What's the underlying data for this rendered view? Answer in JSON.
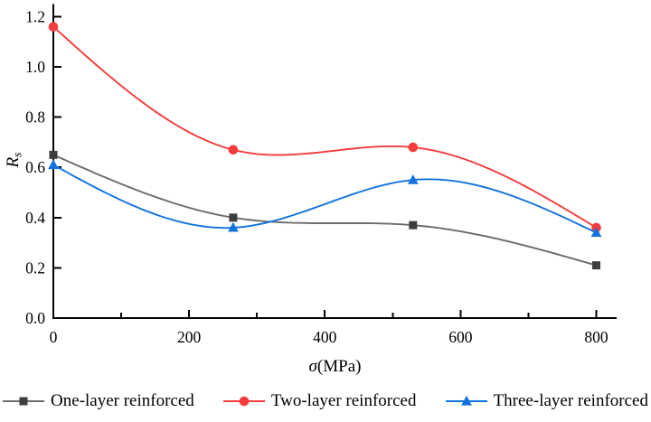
{
  "chart_data": {
    "type": "line",
    "title": "",
    "xlabel_symbol": "σ",
    "xlabel_unit": "(MPa)",
    "ylabel_main": "R",
    "ylabel_sub": "s",
    "xlim": [
      0,
      830
    ],
    "ylim": [
      0,
      1.25
    ],
    "x_ticks": {
      "values": [
        0,
        200,
        400,
        600,
        800
      ],
      "labels": [
        "0",
        "200",
        "400",
        "600",
        "800"
      ]
    },
    "x_minor_ticks": [
      100,
      300,
      500,
      700
    ],
    "y_ticks": {
      "values": [
        0,
        0.2,
        0.4,
        0.6,
        0.8,
        1.0,
        1.2
      ],
      "labels": [
        "0.0",
        "0.2",
        "0.4",
        "0.6",
        "0.8",
        "1.0",
        "1.2"
      ]
    },
    "grid": false,
    "legend_position": "bottom",
    "axis_color": "#000000",
    "text_color": "#000000",
    "curve_style": "natural-cubic-spline",
    "x": [
      0,
      265,
      530,
      800
    ],
    "series": [
      {
        "id": "one-layer",
        "name": "One-layer reinforced",
        "marker": "square",
        "line_color": "#6b6b6b",
        "marker_color": "#3d3d3d",
        "values": [
          0.65,
          0.4,
          0.37,
          0.21
        ]
      },
      {
        "id": "two-layer",
        "name": "Two-layer reinforced",
        "marker": "circle",
        "line_color": "#f43c3c",
        "marker_color": "#f43c3c",
        "values": [
          1.16,
          0.67,
          0.68,
          0.36
        ]
      },
      {
        "id": "three-layer",
        "name": "Three-layer reinforced",
        "marker": "triangle",
        "line_color": "#1273dc",
        "marker_color": "#1273dc",
        "values": [
          0.61,
          0.36,
          0.55,
          0.34
        ]
      }
    ]
  }
}
